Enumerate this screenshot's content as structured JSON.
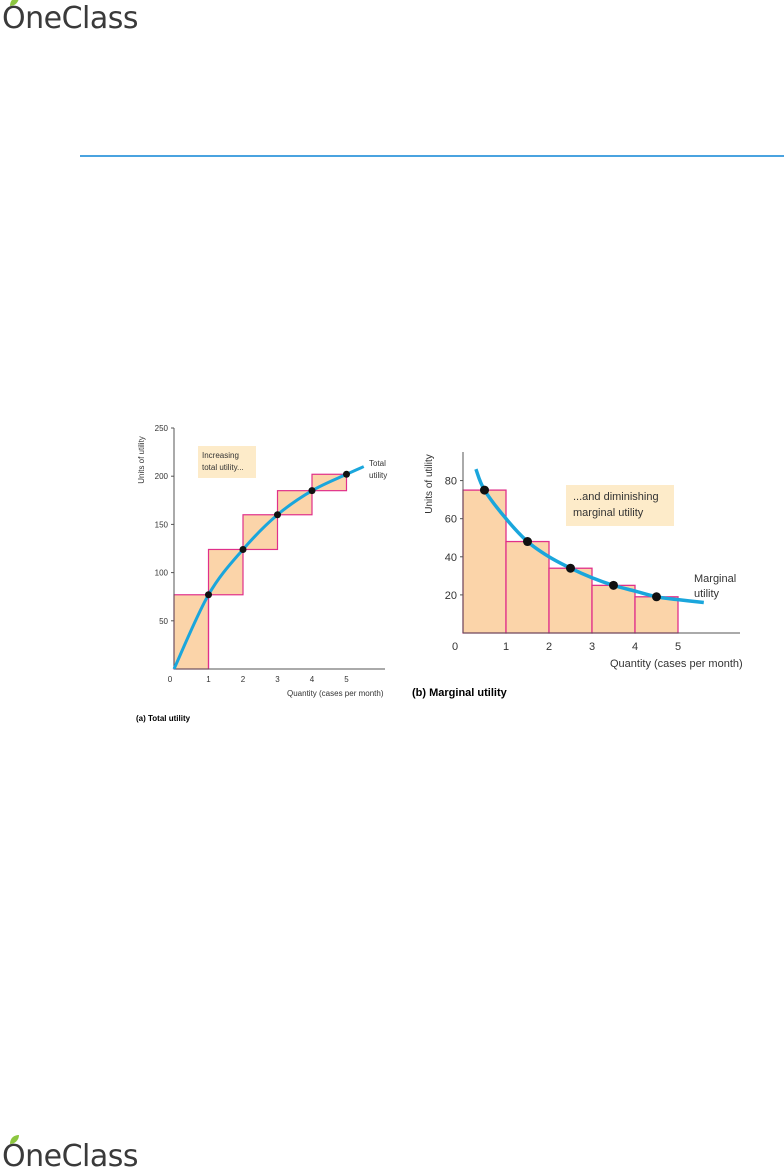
{
  "brand": {
    "name": "OneClass",
    "first_letter": "O",
    "rest": "neClass"
  },
  "colors": {
    "bar_fill": "#fbd4a9",
    "bar_edge": "#e0308a",
    "curve": "#1aa6dc",
    "point": "#111111",
    "rule": "#4aa3e0",
    "note_fill": "#fdebc9"
  },
  "chart_data": [
    {
      "type": "bar",
      "panel_label": "(a) Total utility",
      "xlabel": "Quantity (cases per month)",
      "ylabel": "Units of utility",
      "xlim": [
        0,
        6
      ],
      "ylim": [
        0,
        250
      ],
      "x_ticks": [
        0,
        1,
        2,
        3,
        4,
        5
      ],
      "y_ticks": [
        50,
        100,
        150,
        200,
        250
      ],
      "categories": [
        "1",
        "2",
        "3",
        "4",
        "5"
      ],
      "bars": [
        {
          "x_start": 0,
          "x_end": 1,
          "base": 0,
          "top": 77
        },
        {
          "x_start": 1,
          "x_end": 2,
          "base": 77,
          "top": 124
        },
        {
          "x_start": 2,
          "x_end": 3,
          "base": 124,
          "top": 160
        },
        {
          "x_start": 3,
          "x_end": 4,
          "base": 160,
          "top": 185
        },
        {
          "x_start": 4,
          "x_end": 5,
          "base": 185,
          "top": 202
        }
      ],
      "curve_points": [
        [
          0,
          0
        ],
        [
          1,
          77
        ],
        [
          2,
          124
        ],
        [
          3,
          160
        ],
        [
          4,
          185
        ],
        [
          5,
          202
        ],
        [
          5.5,
          210
        ]
      ],
      "points": [
        [
          1,
          77
        ],
        [
          2,
          124
        ],
        [
          3,
          160
        ],
        [
          4,
          185
        ],
        [
          5,
          202
        ]
      ],
      "curve_label": "Total utility",
      "note": "Increasing total utility..."
    },
    {
      "type": "bar",
      "panel_label": "(b) Marginal utility",
      "xlabel": "Quantity (cases per month)",
      "ylabel": "Units of utility",
      "xlim": [
        0,
        6.6
      ],
      "ylim": [
        0,
        95
      ],
      "x_ticks": [
        0,
        1,
        2,
        3,
        4,
        5
      ],
      "y_ticks": [
        20,
        40,
        60,
        80
      ],
      "categories": [
        "1",
        "2",
        "3",
        "4",
        "5"
      ],
      "values": [
        75,
        48,
        34,
        25,
        19
      ],
      "curve_points": [
        [
          0.3,
          86
        ],
        [
          0.5,
          75
        ],
        [
          1,
          60
        ],
        [
          1.5,
          48
        ],
        [
          2,
          40
        ],
        [
          2.5,
          34
        ],
        [
          3,
          29
        ],
        [
          3.5,
          25
        ],
        [
          4,
          22
        ],
        [
          4.5,
          19
        ],
        [
          5,
          17.5
        ],
        [
          5.6,
          16
        ]
      ],
      "points": [
        [
          0.5,
          75
        ],
        [
          1.5,
          48
        ],
        [
          2.5,
          34
        ],
        [
          3.5,
          25
        ],
        [
          4.5,
          19
        ]
      ],
      "curve_label": "Marginal utility",
      "note": "...and diminishing marginal utility"
    }
  ]
}
